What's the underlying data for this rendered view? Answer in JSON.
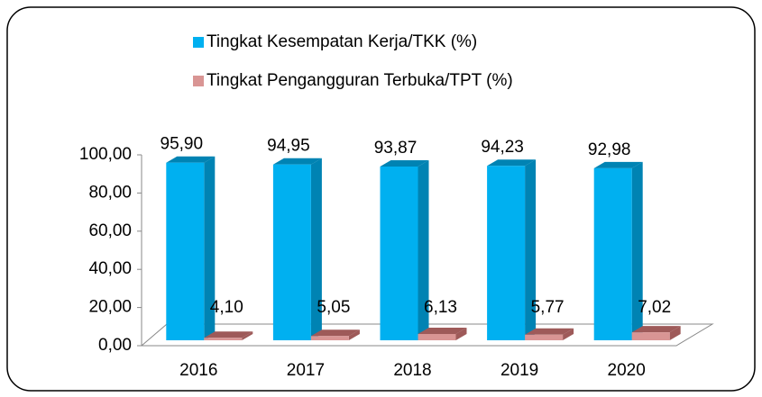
{
  "chart_data": {
    "type": "bar3d",
    "categories": [
      "2016",
      "2017",
      "2018",
      "2019",
      "2020"
    ],
    "series": [
      {
        "name": "Tingkat Kesempatan Kerja/TKK (%)",
        "color": "#00B0F0",
        "side_color": "#0083B3",
        "values": [
          95.9,
          94.95,
          93.87,
          94.23,
          92.98
        ],
        "value_labels": [
          "95,90",
          "94,95",
          "93,87",
          "94,23",
          "92,98"
        ]
      },
      {
        "name": "Tingkat Pengangguran Terbuka/TPT (%)",
        "color": "#D99594",
        "side_color": "#9E5A59",
        "values": [
          4.1,
          5.05,
          6.13,
          5.77,
          7.02
        ],
        "value_labels": [
          "4,10",
          "5,05",
          "6,13",
          "5,77",
          "7,02"
        ]
      }
    ],
    "ylim": [
      0,
      100
    ],
    "yticks": [
      {
        "value": 0,
        "label": "0,00"
      },
      {
        "value": 20,
        "label": "20,00"
      },
      {
        "value": 40,
        "label": "40,00"
      },
      {
        "value": 60,
        "label": "60,00"
      },
      {
        "value": 80,
        "label": "80,00"
      },
      {
        "value": 100,
        "label": "100,00"
      }
    ],
    "grid": false
  }
}
